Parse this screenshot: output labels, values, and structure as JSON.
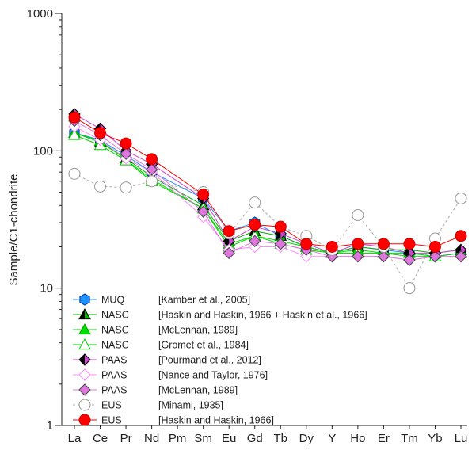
{
  "chart_data": {
    "type": "line",
    "ylabel": "Sample/C1-chondrite",
    "xlabel": "",
    "yscale": "log",
    "ylim": [
      1,
      1000
    ],
    "y_ticks": [
      "1",
      "10",
      "100",
      "1000"
    ],
    "categories": [
      "La",
      "Ce",
      "Pr",
      "Nd",
      "Pm",
      "Sm",
      "Eu",
      "Gd",
      "Tb",
      "Dy",
      "Y",
      "Ho",
      "Er",
      "Tm",
      "Yb",
      "Lu"
    ],
    "legend_position": "bottom-left",
    "series": [
      {
        "name": "MUQ",
        "ref": "[Kamber et al., 2005]",
        "marker": "hexagon",
        "color": "#1e90ff",
        "fill": "#1e90ff",
        "dashed": false,
        "values": [
          135,
          120,
          92,
          70,
          null,
          45,
          26,
          30,
          24,
          20,
          18,
          20,
          19,
          18,
          17,
          18
        ]
      },
      {
        "name": "NASC",
        "ref": "[Haskin and Haskin, 1966 + Haskin et al., 1966]",
        "marker": "triangle-half",
        "color": "#000000",
        "fill": "#00b000",
        "dashed": false,
        "values": [
          135,
          115,
          88,
          65,
          null,
          40,
          22,
          26,
          24,
          20,
          18,
          20,
          19,
          19,
          18,
          19
        ]
      },
      {
        "name": "NASC",
        "ref": "[McLennan, 1989]",
        "marker": "triangle",
        "color": "#00a000",
        "fill": "#00dd00",
        "dashed": false,
        "values": [
          135,
          118,
          86,
          62,
          null,
          38,
          21,
          24,
          22,
          20,
          18,
          19,
          18,
          18,
          17,
          18
        ]
      },
      {
        "name": "NASC",
        "ref": "[Gromet et al., 1984]",
        "marker": "triangle",
        "color": "#00cc00",
        "fill": "none",
        "dashed": false,
        "values": [
          130,
          110,
          85,
          60,
          null,
          38,
          20,
          24,
          21,
          19,
          18,
          18,
          18,
          17,
          17,
          18
        ]
      },
      {
        "name": "PAAS",
        "ref": "[Pourmand et al., 2012]",
        "marker": "diamond-half",
        "color": "#000000",
        "fill": "#cc44cc",
        "dashed": false,
        "values": [
          185,
          145,
          100,
          80,
          null,
          45,
          22,
          28,
          25,
          21,
          18,
          21,
          20,
          18,
          18,
          19
        ]
      },
      {
        "name": "PAAS",
        "ref": "[Nance and Taylor, 1976]",
        "marker": "diamond",
        "color": "#ff88ff",
        "fill": "none",
        "dashed": false,
        "values": [
          150,
          120,
          88,
          70,
          null,
          33,
          19,
          20,
          20,
          17,
          17,
          17,
          17,
          16,
          17,
          17
        ]
      },
      {
        "name": "PAAS",
        "ref": "[McLennan, 1989]",
        "marker": "diamond",
        "color": "#444444",
        "fill": "#dd77dd",
        "dashed": false,
        "values": [
          165,
          130,
          95,
          73,
          null,
          36,
          18,
          22,
          21,
          19,
          17,
          17,
          17,
          16,
          17,
          17
        ]
      },
      {
        "name": "EUS",
        "ref": "[Minami, 1935]",
        "marker": "circle",
        "color": "#999999",
        "fill": "none",
        "dashed": true,
        "values": [
          68,
          55,
          54,
          60,
          null,
          50,
          25,
          42,
          28,
          24,
          19,
          34,
          20,
          10,
          23,
          45
        ]
      },
      {
        "name": "EUS",
        "ref": "[Haskin and Haskin, 1966]",
        "marker": "circle",
        "color": "#cc0000",
        "fill": "#ff0000",
        "dashed": false,
        "values": [
          175,
          135,
          113,
          87,
          null,
          48,
          26,
          29,
          28,
          21,
          20,
          21,
          21,
          21,
          20,
          24
        ]
      }
    ]
  }
}
